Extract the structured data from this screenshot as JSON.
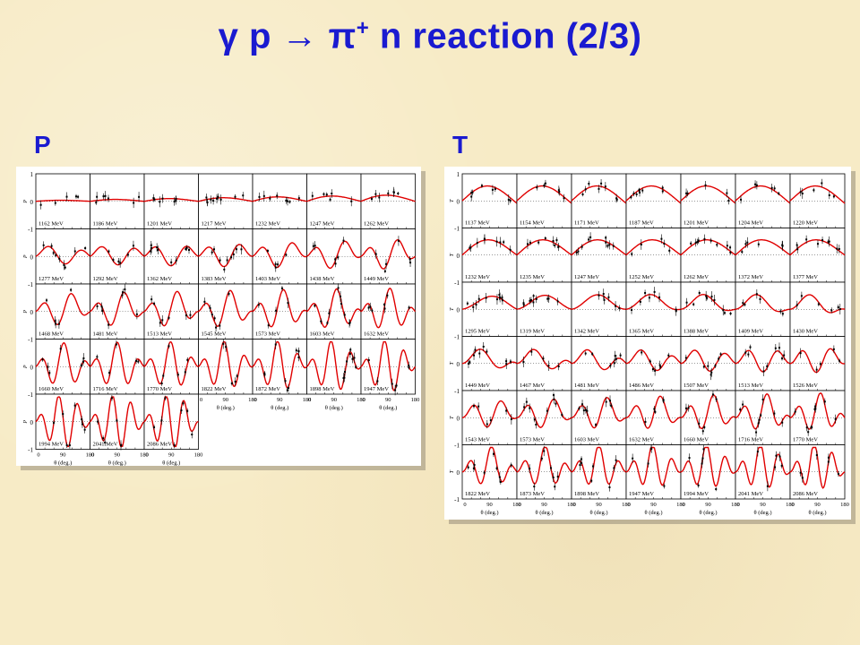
{
  "slide": {
    "title_main": "γ p  →  π",
    "title_sup": "+",
    "title_tail": " n reaction (2/3)"
  },
  "panels": [
    {
      "label": "P"
    },
    {
      "label": "T"
    }
  ],
  "colors": {
    "title": "#1a1ad0",
    "curve": "#e00000",
    "points": "#000000"
  },
  "chart_data": [
    {
      "type": "scatter",
      "title": "P",
      "ylabel": "P",
      "xlabel": "θ (deg.)",
      "xlim": [
        0,
        180
      ],
      "ylim": [
        -1,
        1
      ],
      "x_ticks": [
        "0",
        "90",
        "180"
      ],
      "y_ticks": [
        "1",
        "0",
        "-1"
      ],
      "panel_kind": "P",
      "energies": [
        "1162 MeV",
        "1186 MeV",
        "1201 MeV",
        "1217 MeV",
        "1232 MeV",
        "1247 MeV",
        "1262 MeV",
        "1277 MeV",
        "1292 MeV",
        "1362 MeV",
        "1383 MeV",
        "1403 MeV",
        "1438 MeV",
        "1449 MeV",
        "1468 MeV",
        "1481 MeV",
        "1513 MeV",
        "1545 MeV",
        "1573 MeV",
        "1603 MeV",
        "1632 MeV",
        "1660 MeV",
        "1716 MeV",
        "1770 MeV",
        "1822 MeV",
        "1872 MeV",
        "1898 MeV",
        "1947 MeV",
        "1994 MeV",
        "2041 MeV",
        "2086 MeV"
      ]
    },
    {
      "type": "scatter",
      "title": "T",
      "ylabel": "T",
      "xlabel": "θ (deg.)",
      "xlim": [
        0,
        180
      ],
      "ylim": [
        -1,
        1
      ],
      "x_ticks": [
        "0",
        "90",
        "180"
      ],
      "y_ticks": [
        "1",
        "0",
        "-1"
      ],
      "panel_kind": "T",
      "energies": [
        "1137 MeV",
        "1154 MeV",
        "1171 MeV",
        "1187 MeV",
        "1201 MeV",
        "1204 MeV",
        "1220 MeV",
        "1232 MeV",
        "1235 MeV",
        "1247 MeV",
        "1252 MeV",
        "1262 MeV",
        "1372 MeV",
        "1377 MeV",
        "1295 MeV",
        "1319 MeV",
        "1342 MeV",
        "1365 MeV",
        "1388 MeV",
        "1409 MeV",
        "1430 MeV",
        "1449 MeV",
        "1467 MeV",
        "1481 MeV",
        "1486 MeV",
        "1507 MeV",
        "1513 MeV",
        "1526 MeV",
        "1543 MeV",
        "1573 MeV",
        "1603 MeV",
        "1632 MeV",
        "1660 MeV",
        "1716 MeV",
        "1770 MeV",
        "1822 MeV",
        "1873 MeV",
        "1898 MeV",
        "1947 MeV",
        "1994 MeV",
        "2041 MeV",
        "2086 MeV"
      ]
    }
  ]
}
